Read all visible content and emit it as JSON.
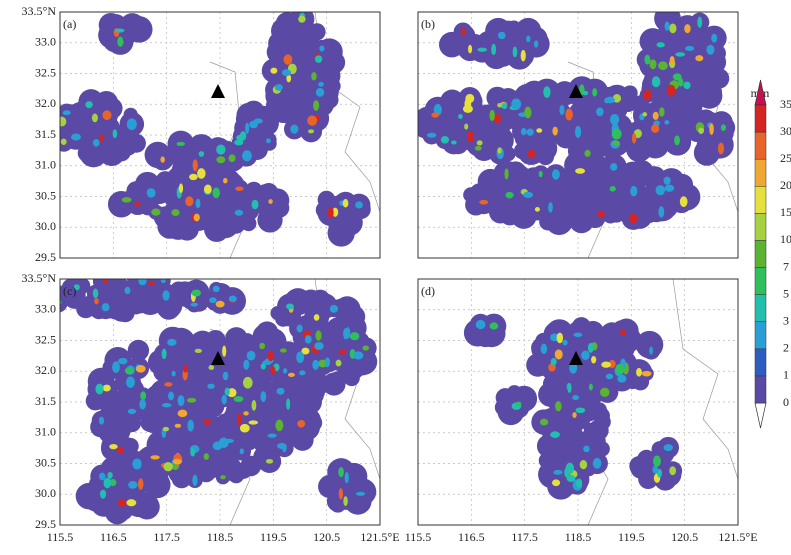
{
  "panels": [
    {
      "label": "(a)"
    },
    {
      "label": "(b)"
    },
    {
      "label": "(c)"
    },
    {
      "label": "(d)"
    }
  ],
  "lat_labels": [
    "33.5°N",
    "33.0",
    "32.5",
    "32.0",
    "31.5",
    "31.0",
    "30.5",
    "30.0",
    "29.5"
  ],
  "lon_labels": [
    "115.5",
    "116.5",
    "117.5",
    "118.5",
    "119.5",
    "120.5",
    "121.5°E"
  ],
  "colorbar": {
    "unit": "mm",
    "levels": [
      0,
      1,
      2,
      3,
      5,
      7,
      10,
      15,
      20,
      25,
      30,
      35
    ],
    "colors": [
      "#ffffff",
      "#5a4aa6",
      "#2f5cc0",
      "#2a9fd6",
      "#22bfae",
      "#2fbf5c",
      "#5ab431",
      "#a6d140",
      "#e6e03c",
      "#f0a832",
      "#e8642a",
      "#d42424",
      "#c8104e"
    ]
  }
}
